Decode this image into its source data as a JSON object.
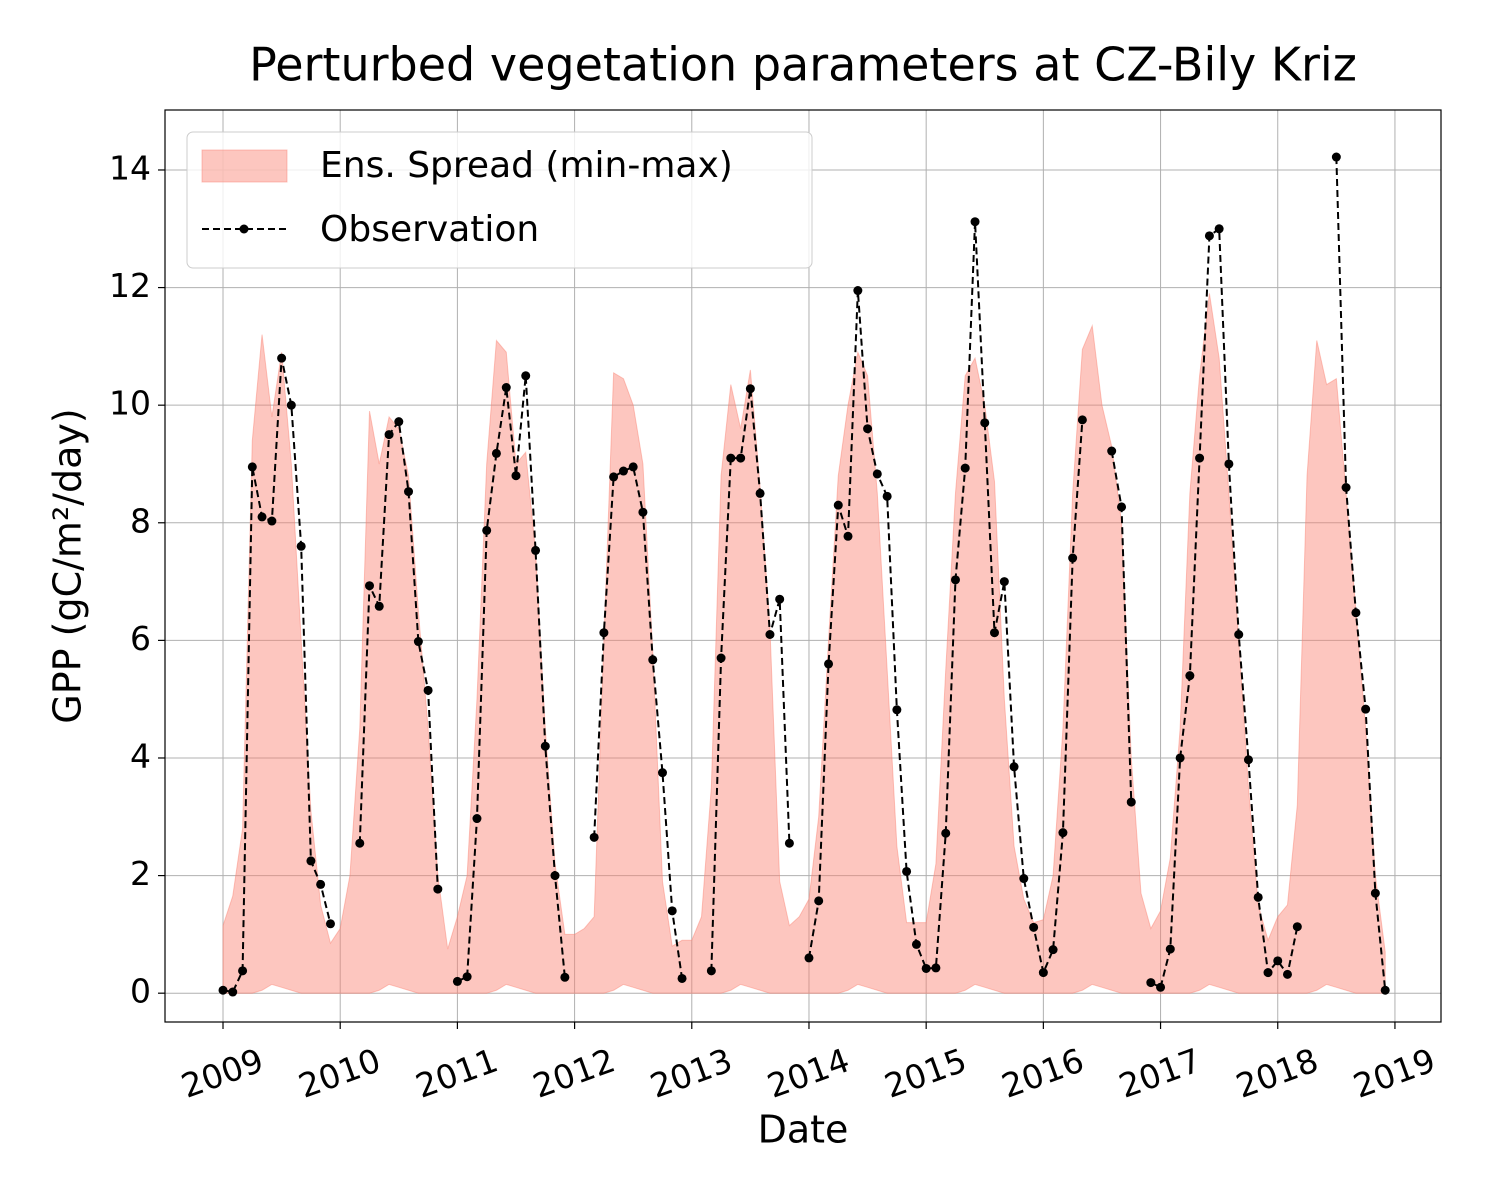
{
  "chart_data": {
    "type": "band-line",
    "title": "Perturbed vegetation parameters at CZ-Bily Kriz",
    "x_label": "Date",
    "y_label": "GPP  (gC/m²/day)",
    "x": [
      2009,
      2009.083,
      2009.167,
      2009.25,
      2009.333,
      2009.417,
      2009.5,
      2009.583,
      2009.667,
      2009.75,
      2009.833,
      2009.917,
      2010,
      2010.083,
      2010.167,
      2010.25,
      2010.333,
      2010.417,
      2010.5,
      2010.583,
      2010.667,
      2010.75,
      2010.833,
      2010.917,
      2011,
      2011.083,
      2011.167,
      2011.25,
      2011.333,
      2011.417,
      2011.5,
      2011.583,
      2011.667,
      2011.75,
      2011.833,
      2011.917,
      2012,
      2012.083,
      2012.167,
      2012.25,
      2012.333,
      2012.417,
      2012.5,
      2012.583,
      2012.667,
      2012.75,
      2012.833,
      2012.917,
      2013,
      2013.083,
      2013.167,
      2013.25,
      2013.333,
      2013.417,
      2013.5,
      2013.583,
      2013.667,
      2013.75,
      2013.833,
      2013.917,
      2014,
      2014.083,
      2014.167,
      2014.25,
      2014.333,
      2014.417,
      2014.5,
      2014.583,
      2014.667,
      2014.75,
      2014.833,
      2014.917,
      2015,
      2015.083,
      2015.167,
      2015.25,
      2015.333,
      2015.417,
      2015.5,
      2015.583,
      2015.667,
      2015.75,
      2015.833,
      2015.917,
      2016,
      2016.083,
      2016.167,
      2016.25,
      2016.333,
      2016.417,
      2016.5,
      2016.583,
      2016.667,
      2016.75,
      2016.833,
      2016.917,
      2017,
      2017.083,
      2017.167,
      2017.25,
      2017.333,
      2017.417,
      2017.5,
      2017.583,
      2017.667,
      2017.75,
      2017.833,
      2017.917,
      2018,
      2018.083,
      2018.167,
      2018.25,
      2018.333,
      2018.417,
      2018.5,
      2018.583,
      2018.667,
      2018.75,
      2018.833,
      2018.917
    ],
    "series": [
      {
        "name": "Ens. Spread (min-max)",
        "color": "#fa8072",
        "alpha": 0.45,
        "min": [
          0,
          0,
          0,
          0,
          0.05,
          0.15,
          0.1,
          0.05,
          0,
          0,
          0,
          0,
          0,
          0,
          0,
          0,
          0.05,
          0.15,
          0.1,
          0.05,
          0,
          0,
          0,
          0,
          0,
          0,
          0,
          0,
          0.05,
          0.15,
          0.1,
          0.05,
          0,
          0,
          0,
          0,
          0,
          0,
          0,
          0,
          0.05,
          0.15,
          0.1,
          0.05,
          0,
          0,
          0,
          0,
          0,
          0,
          0,
          0,
          0.05,
          0.15,
          0.1,
          0.05,
          0,
          0,
          0,
          0,
          0,
          0,
          0,
          0,
          0.05,
          0.15,
          0.1,
          0.05,
          0,
          0,
          0,
          0,
          0,
          0,
          0,
          0,
          0.05,
          0.15,
          0.1,
          0.05,
          0,
          0,
          0,
          0,
          0,
          0,
          0,
          0,
          0.05,
          0.15,
          0.1,
          0.05,
          0,
          0,
          0,
          0,
          0,
          0,
          0,
          0,
          0.05,
          0.15,
          0.1,
          0.05,
          0,
          0,
          0,
          0,
          0,
          0,
          0,
          0,
          0.05,
          0.15,
          0.1,
          0.05,
          0,
          0,
          0,
          0
        ],
        "max": [
          1.15,
          1.65,
          2.8,
          9.4,
          11.2,
          9.8,
          10.9,
          9.0,
          6.0,
          3.1,
          1.5,
          0.85,
          1.1,
          2.0,
          4.5,
          9.9,
          9.0,
          9.8,
          9.6,
          8.8,
          6.5,
          4.5,
          2.0,
          0.75,
          1.3,
          2.0,
          5.0,
          9.0,
          11.1,
          10.9,
          9.0,
          9.2,
          7.5,
          4.5,
          2.2,
          1.0,
          1.0,
          1.1,
          1.3,
          6.0,
          10.55,
          10.45,
          10.0,
          9.0,
          5.8,
          1.9,
          0.8,
          0.9,
          0.9,
          1.3,
          3.5,
          8.8,
          10.35,
          9.6,
          10.6,
          8.6,
          6.2,
          1.9,
          1.15,
          1.3,
          1.6,
          3.0,
          6.0,
          8.8,
          10.0,
          10.9,
          10.5,
          8.5,
          5.5,
          2.5,
          1.2,
          1.2,
          1.2,
          2.2,
          5.5,
          8.5,
          10.5,
          10.8,
          10.0,
          8.7,
          5.0,
          2.5,
          1.6,
          1.2,
          1.25,
          2.0,
          4.5,
          8.5,
          10.95,
          11.35,
          10.0,
          9.3,
          8.0,
          4.0,
          1.7,
          1.1,
          1.4,
          2.3,
          4.5,
          8.5,
          10.5,
          11.9,
          10.8,
          8.5,
          6.0,
          3.5,
          1.5,
          0.9,
          1.3,
          1.5,
          3.2,
          8.8,
          11.1,
          10.35,
          10.45,
          8.5,
          6.5,
          4.5,
          2.0,
          0.7
        ]
      },
      {
        "name": "Observation",
        "color": "#000000",
        "values": [
          0.05,
          0.02,
          0.38,
          8.95,
          8.1,
          8.03,
          10.8,
          10.0,
          7.6,
          2.25,
          1.85,
          1.18,
          null,
          null,
          2.55,
          6.93,
          6.58,
          9.5,
          9.72,
          8.53,
          5.98,
          5.15,
          1.77,
          null,
          0.2,
          0.28,
          2.97,
          7.87,
          9.18,
          10.3,
          8.8,
          10.5,
          7.53,
          4.2,
          2.0,
          0.27,
          null,
          null,
          2.65,
          6.13,
          8.78,
          8.88,
          8.95,
          8.18,
          5.67,
          3.75,
          1.4,
          0.25,
          null,
          null,
          0.38,
          5.7,
          9.1,
          9.1,
          10.28,
          8.5,
          6.1,
          6.7,
          2.55,
          null,
          0.6,
          1.57,
          5.6,
          8.3,
          7.77,
          11.95,
          9.6,
          8.83,
          8.45,
          4.82,
          2.07,
          0.83,
          0.42,
          0.43,
          2.72,
          7.03,
          8.93,
          13.12,
          9.7,
          6.13,
          7.0,
          3.85,
          1.95,
          1.12,
          0.35,
          0.74,
          2.73,
          7.4,
          9.75,
          null,
          null,
          9.22,
          8.27,
          3.25,
          null,
          0.18,
          0.1,
          0.75,
          4.0,
          5.4,
          9.1,
          12.88,
          13.0,
          9.0,
          6.1,
          3.97,
          1.63,
          0.35,
          0.55,
          0.32,
          1.13,
          null,
          null,
          null,
          14.22,
          8.6,
          6.47,
          4.83,
          1.7,
          0.05
        ]
      }
    ],
    "xlim": [
      2008.505,
      2019.393
    ],
    "ylim": [
      -0.49,
      15.02
    ],
    "xticks": [
      2009,
      2010,
      2011,
      2012,
      2013,
      2014,
      2015,
      2016,
      2017,
      2018,
      2019
    ],
    "yticks": [
      0,
      2,
      4,
      6,
      8,
      10,
      12,
      14
    ],
    "grid": true,
    "legend": "upper left"
  }
}
